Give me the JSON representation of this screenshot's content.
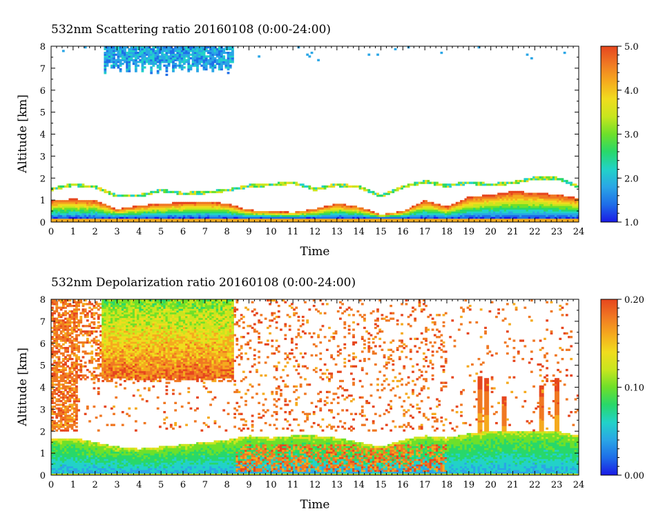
{
  "figure": {
    "background": "#ffffff"
  },
  "colormap": [
    "#1a1ae6",
    "#1e6ee8",
    "#2aa6e6",
    "#22d2c8",
    "#28d86a",
    "#6ee02a",
    "#c8e61e",
    "#f0dc1e",
    "#f5aa1e",
    "#f07823",
    "#e6461e"
  ],
  "chart_data": [
    {
      "type": "heatmap",
      "title": "532nm Scattering ratio  20160108 (0:00-24:00)",
      "xlabel": "Time",
      "ylabel": "Altitude [km]",
      "xlim": [
        0,
        24
      ],
      "ylim": [
        0,
        8
      ],
      "x_ticks": [
        "0",
        "1",
        "2",
        "3",
        "4",
        "5",
        "6",
        "7",
        "8",
        "9",
        "10",
        "11",
        "12",
        "13",
        "14",
        "15",
        "16",
        "17",
        "18",
        "19",
        "20",
        "21",
        "22",
        "23",
        "24"
      ],
      "y_ticks": [
        "0",
        "1",
        "2",
        "3",
        "4",
        "5",
        "6",
        "7",
        "8"
      ],
      "colorbar": {
        "range": [
          1.0,
          5.0
        ],
        "ticks": [
          "1.0",
          "2.0",
          "3.0",
          "4.0",
          "5.0"
        ]
      },
      "features": {
        "boundary_layer_top_km": [
          [
            0,
            1.5
          ],
          [
            1,
            1.7
          ],
          [
            2,
            1.6
          ],
          [
            3,
            1.2
          ],
          [
            4,
            1.2
          ],
          [
            5,
            1.45
          ],
          [
            6,
            1.3
          ],
          [
            7,
            1.35
          ],
          [
            8,
            1.45
          ],
          [
            9,
            1.65
          ],
          [
            10,
            1.7
          ],
          [
            11,
            1.8
          ],
          [
            12,
            1.5
          ],
          [
            13,
            1.7
          ],
          [
            14,
            1.6
          ],
          [
            15,
            1.2
          ],
          [
            16,
            1.6
          ],
          [
            17,
            1.85
          ],
          [
            18,
            1.65
          ],
          [
            19,
            1.8
          ],
          [
            20,
            1.7
          ],
          [
            21,
            1.8
          ],
          [
            22,
            2.0
          ],
          [
            23,
            2.0
          ],
          [
            24,
            1.6
          ]
        ],
        "aerosol_layer_top_km": [
          [
            0,
            1.0
          ],
          [
            1,
            1.05
          ],
          [
            2,
            1.0
          ],
          [
            3,
            0.6
          ],
          [
            4,
            0.75
          ],
          [
            5,
            0.85
          ],
          [
            6,
            0.9
          ],
          [
            7,
            0.95
          ],
          [
            8,
            0.85
          ],
          [
            9,
            0.55
          ],
          [
            10,
            0.5
          ],
          [
            11,
            0.45
          ],
          [
            12,
            0.6
          ],
          [
            13,
            0.85
          ],
          [
            14,
            0.7
          ],
          [
            15,
            0.35
          ],
          [
            16,
            0.5
          ],
          [
            17,
            1.0
          ],
          [
            18,
            0.7
          ],
          [
            19,
            1.15
          ],
          [
            20,
            1.25
          ],
          [
            21,
            1.4
          ],
          [
            22,
            1.35
          ],
          [
            23,
            1.25
          ],
          [
            24,
            1.1
          ]
        ],
        "upper_cloud": {
          "x_range": [
            2.4,
            8.3
          ],
          "base_km": 6.6,
          "top_km": 8,
          "value": 1.6
        }
      }
    },
    {
      "type": "heatmap",
      "title": "532nm Depolarization ratio  20160108 (0:00-24:00)",
      "xlabel": "Time",
      "ylabel": "Altitude [km]",
      "xlim": [
        0,
        24
      ],
      "ylim": [
        0,
        8
      ],
      "x_ticks": [
        "0",
        "1",
        "2",
        "3",
        "4",
        "5",
        "6",
        "7",
        "8",
        "9",
        "10",
        "11",
        "12",
        "13",
        "14",
        "15",
        "16",
        "17",
        "18",
        "19",
        "20",
        "21",
        "22",
        "23",
        "24"
      ],
      "y_ticks": [
        "0",
        "1",
        "2",
        "3",
        "4",
        "5",
        "6",
        "7",
        "8"
      ],
      "colorbar": {
        "range": [
          0.0,
          0.2
        ],
        "ticks": [
          "0.00",
          "0.10",
          "0.20"
        ]
      },
      "features": {
        "boundary_layer_top_km": [
          [
            0,
            1.7
          ],
          [
            1,
            1.7
          ],
          [
            2,
            1.5
          ],
          [
            3,
            1.3
          ],
          [
            4,
            1.2
          ],
          [
            5,
            1.3
          ],
          [
            6,
            1.4
          ],
          [
            7,
            1.5
          ],
          [
            8,
            1.6
          ],
          [
            9,
            1.8
          ],
          [
            10,
            1.7
          ],
          [
            11,
            1.8
          ],
          [
            12,
            1.8
          ],
          [
            13,
            1.7
          ],
          [
            14,
            1.5
          ],
          [
            15,
            1.3
          ],
          [
            16,
            1.6
          ],
          [
            17,
            1.8
          ],
          [
            18,
            1.7
          ],
          [
            19,
            1.9
          ],
          [
            20,
            2.0
          ],
          [
            21,
            2.0
          ],
          [
            22,
            2.0
          ],
          [
            23,
            2.0
          ],
          [
            24,
            1.8
          ]
        ],
        "high_depol_region": {
          "x_range": [
            8.4,
            18.0
          ],
          "bottom_km": 0.2,
          "top_km": 1.4
        },
        "ice_cloud": {
          "x_range": [
            2.3,
            8.3
          ],
          "base_km": 4.2,
          "top_km": 8
        },
        "plumes_hours": [
          19.5,
          19.8,
          20.6,
          22.3,
          23.0
        ]
      }
    }
  ]
}
